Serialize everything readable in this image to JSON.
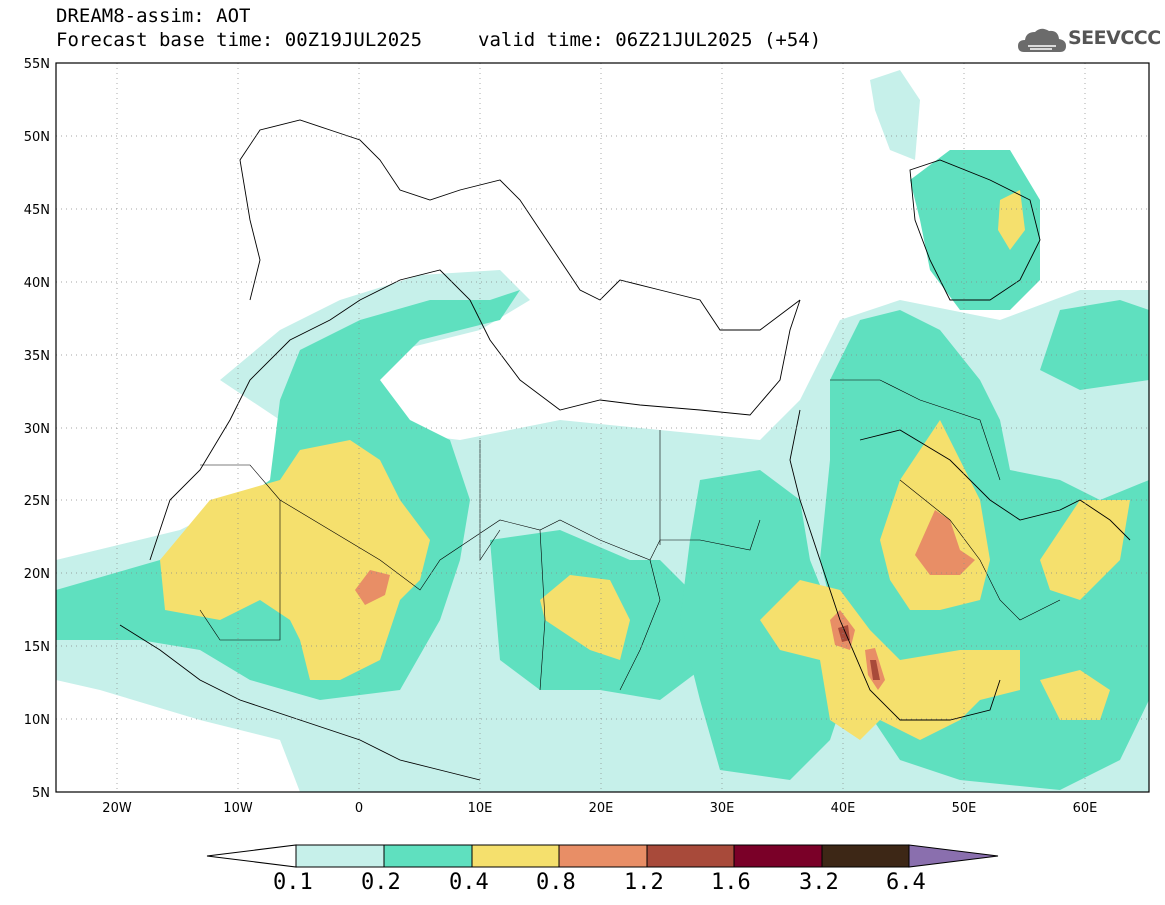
{
  "header": {
    "line1": "DREAM8-assim: AOT",
    "base_time": "Forecast base time: 00Z19JUL2025",
    "valid_time": "valid time: 06Z21JUL2025 (+54)"
  },
  "logo": {
    "text": "SEEVCCC",
    "icon": "cloud-icon"
  },
  "map": {
    "projection": "equirectangular",
    "lon_range": [
      -25,
      65
    ],
    "lat_range": [
      5,
      55
    ],
    "y_ticks": [
      "55N",
      "50N",
      "45N",
      "40N",
      "35N",
      "30N",
      "25N",
      "20N",
      "15N",
      "10N",
      "5N"
    ],
    "x_ticks": [
      "20W",
      "10W",
      "0",
      "10E",
      "20E",
      "30E",
      "40E",
      "50E",
      "60E"
    ],
    "gridlines": "dotted"
  },
  "colorbar": {
    "labels": [
      "0.1",
      "0.2",
      "0.4",
      "0.8",
      "1.2",
      "1.6",
      "3.2",
      "6.4"
    ],
    "colors": [
      "#ffffff",
      "#c6f0ea",
      "#5fe0bf",
      "#f5e06d",
      "#e88e66",
      "#a84a3a",
      "#7a0028",
      "#3d2716",
      "#8a6fae"
    ]
  }
}
